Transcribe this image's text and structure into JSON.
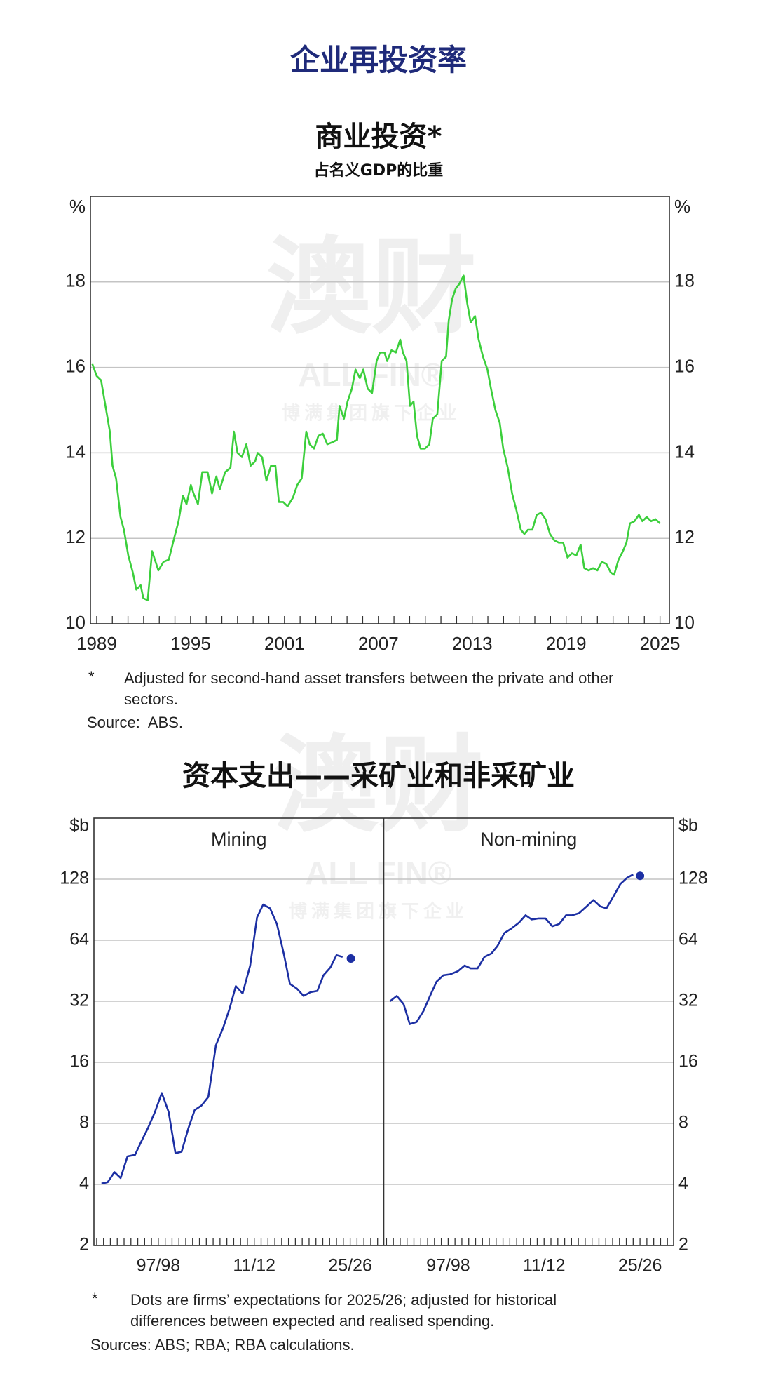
{
  "header": {
    "title": "企业再投资率"
  },
  "watermark": {
    "text": "澳财",
    "brand": "ALL FIN®",
    "tagline": "博满集团旗下企业"
  },
  "chart_data": [
    {
      "type": "line",
      "title": "商业投资*",
      "subtitle": "占名义GDP的比重",
      "y_unit": "%",
      "color": "#3ccf3c",
      "grid": true,
      "xlim": [
        1988.6,
        2025.6
      ],
      "xticks": [
        1989,
        1995,
        2001,
        2007,
        2013,
        2019,
        2025
      ],
      "xminorticks": [
        1989,
        1990,
        1991,
        1992,
        1993,
        1994,
        1995,
        1996,
        1997,
        1998,
        1999,
        2000,
        2001,
        2002,
        2003,
        2004,
        2005,
        2006,
        2007,
        2008,
        2009,
        2010,
        2011,
        2012,
        2013,
        2014,
        2015,
        2016,
        2017,
        2018,
        2019,
        2020,
        2021,
        2022,
        2023,
        2024,
        2025
      ],
      "ylim": [
        10,
        20
      ],
      "yticks": [
        10,
        12,
        14,
        16,
        18
      ],
      "x": [
        1988.72,
        1989.0,
        1989.28,
        1989.56,
        1989.84,
        1990.01,
        1990.24,
        1990.52,
        1990.74,
        1991.02,
        1991.31,
        1991.53,
        1991.81,
        1991.98,
        1992.26,
        1992.54,
        1992.94,
        1993.27,
        1993.61,
        1993.95,
        1994.23,
        1994.51,
        1994.74,
        1995.02,
        1995.19,
        1995.47,
        1995.75,
        1996.09,
        1996.37,
        1996.65,
        1996.87,
        1997.21,
        1997.55,
        1997.77,
        1998.0,
        1998.28,
        1998.56,
        1998.84,
        1999.12,
        1999.29,
        1999.57,
        1999.85,
        2000.14,
        2000.42,
        2000.64,
        2000.92,
        2001.2,
        2001.54,
        2001.82,
        2002.1,
        2002.39,
        2002.61,
        2002.89,
        2003.17,
        2003.45,
        2003.74,
        2004.07,
        2004.35,
        2004.52,
        2004.8,
        2005.03,
        2005.31,
        2005.54,
        2005.82,
        2006.04,
        2006.32,
        2006.6,
        2006.89,
        2007.11,
        2007.39,
        2007.56,
        2007.84,
        2008.12,
        2008.4,
        2008.57,
        2008.8,
        2009.02,
        2009.25,
        2009.47,
        2009.7,
        2009.98,
        2010.26,
        2010.48,
        2010.77,
        2011.05,
        2011.33,
        2011.5,
        2011.72,
        2011.95,
        2012.17,
        2012.45,
        2012.68,
        2012.9,
        2013.18,
        2013.41,
        2013.69,
        2013.97,
        2014.2,
        2014.48,
        2014.76,
        2014.98,
        2015.27,
        2015.55,
        2015.83,
        2016.11,
        2016.33,
        2016.56,
        2016.84,
        2017.12,
        2017.4,
        2017.68,
        2017.97,
        2018.25,
        2018.53,
        2018.81,
        2019.09,
        2019.37,
        2019.65,
        2019.93,
        2020.16,
        2020.44,
        2020.72,
        2021.0,
        2021.28,
        2021.57,
        2021.85,
        2022.07,
        2022.35,
        2022.63,
        2022.86,
        2023.08,
        2023.37,
        2023.65,
        2023.87,
        2024.15,
        2024.43,
        2024.71,
        2025.0
      ],
      "values": [
        16.08,
        15.8,
        15.7,
        15.1,
        14.5,
        13.7,
        13.4,
        12.5,
        12.2,
        11.6,
        11.2,
        10.8,
        10.9,
        10.6,
        10.55,
        11.7,
        11.25,
        11.45,
        11.5,
        12.0,
        12.4,
        13.0,
        12.8,
        13.25,
        13.05,
        12.8,
        13.55,
        13.55,
        13.05,
        13.45,
        13.15,
        13.55,
        13.65,
        14.5,
        14.0,
        13.9,
        14.2,
        13.7,
        13.8,
        14.0,
        13.9,
        13.35,
        13.7,
        13.7,
        12.85,
        12.85,
        12.75,
        12.95,
        13.25,
        13.4,
        14.5,
        14.2,
        14.1,
        14.4,
        14.45,
        14.2,
        14.25,
        14.3,
        15.1,
        14.8,
        15.2,
        15.5,
        15.95,
        15.75,
        15.95,
        15.5,
        15.4,
        16.15,
        16.35,
        16.35,
        16.15,
        16.4,
        16.35,
        16.65,
        16.35,
        16.15,
        15.1,
        15.2,
        14.4,
        14.1,
        14.1,
        14.2,
        14.8,
        14.9,
        16.15,
        16.25,
        17.1,
        17.6,
        17.85,
        17.95,
        18.15,
        17.5,
        17.05,
        17.2,
        16.65,
        16.25,
        15.95,
        15.5,
        15.0,
        14.7,
        14.1,
        13.65,
        13.05,
        12.65,
        12.2,
        12.1,
        12.2,
        12.2,
        12.55,
        12.6,
        12.45,
        12.1,
        11.95,
        11.9,
        11.9,
        11.55,
        11.65,
        11.6,
        11.85,
        11.3,
        11.25,
        11.3,
        11.25,
        11.45,
        11.4,
        11.2,
        11.15,
        11.5,
        11.7,
        11.9,
        12.35,
        12.4,
        12.55,
        12.4,
        12.5,
        12.4,
        12.45,
        12.35
      ],
      "footnote": {
        "mark": "*",
        "text": "Adjusted for second-hand asset transfers between the private and other sectors."
      },
      "source": "Source:  ABS."
    },
    {
      "type": "line",
      "title": "资本支出——采矿业和非采矿业",
      "y_unit": "$b",
      "yscale": "log",
      "color": "#1c2fa3",
      "grid": true,
      "xlim": [
        1988.6,
        2030.9
      ],
      "xticks": [
        {
          "value": 1998,
          "label": "97/98"
        },
        {
          "value": 2012,
          "label": "11/12"
        },
        {
          "value": 2026,
          "label": "25/26"
        }
      ],
      "xminorticks": [
        1989,
        1990,
        1991,
        1992,
        1993,
        1994,
        1995,
        1996,
        1997,
        1998,
        1999,
        2000,
        2001,
        2002,
        2003,
        2004,
        2005,
        2006,
        2007,
        2008,
        2009,
        2010,
        2011,
        2012,
        2013,
        2014,
        2015,
        2016,
        2017,
        2018,
        2019,
        2020,
        2021,
        2022,
        2023,
        2024,
        2025,
        2026,
        2027,
        2028,
        2029,
        2030
      ],
      "ylim": [
        2,
        256
      ],
      "yticks": [
        2,
        4,
        8,
        16,
        32,
        64,
        128
      ],
      "panels": [
        {
          "title": "Mining",
          "x": [
            1989.7,
            1990.6,
            1991.6,
            1992.5,
            1993.5,
            1994.6,
            1995.4,
            1996.5,
            1997.5,
            1998.5,
            1999.5,
            2000.5,
            2001.4,
            2002.4,
            2003.3,
            2004.3,
            2005.3,
            2006.4,
            2007.4,
            2008.4,
            2009.3,
            2010.3,
            2011.4,
            2012.4,
            2013.3,
            2014.3,
            2015.3,
            2016.3,
            2017.2,
            2018.2,
            2019.2,
            2020.2,
            2021.2,
            2022.1,
            2023.1,
            2024.0,
            2024.9
          ],
          "values": [
            4.04,
            4.1,
            4.6,
            4.3,
            5.5,
            5.6,
            6.4,
            7.6,
            9.1,
            11.3,
            9.1,
            5.7,
            5.8,
            7.6,
            9.3,
            9.8,
            10.8,
            19.4,
            23.4,
            29.5,
            38,
            35,
            48,
            83,
            96,
            92,
            77,
            55,
            39,
            37,
            34,
            35.5,
            36,
            43,
            47,
            54,
            53
          ],
          "expectation": {
            "x": 2026.1,
            "value": 52
          }
        },
        {
          "title": "Non-mining",
          "x": [
            1989.5,
            1990.5,
            1991.5,
            1992.4,
            1993.4,
            1994.4,
            1995.4,
            1996.3,
            1997.3,
            1998.3,
            1999.4,
            2000.4,
            2001.3,
            2002.3,
            2003.3,
            2004.3,
            2005.2,
            2006.2,
            2007.2,
            2008.3,
            2009.3,
            2010.2,
            2011.2,
            2012.2,
            2013.2,
            2014.2,
            2015.2,
            2016.1,
            2017.1,
            2018.2,
            2019.2,
            2020.2,
            2021.1,
            2022.1,
            2023.1,
            2024.1,
            2025.0
          ],
          "values": [
            32,
            34,
            31,
            24.7,
            25.3,
            28.7,
            34.3,
            40,
            43,
            43.5,
            45,
            48,
            46.5,
            46.5,
            53,
            55,
            60,
            69.5,
            73,
            78,
            85,
            81,
            82,
            82,
            75,
            77,
            85,
            85,
            87,
            94,
            101,
            94,
            92,
            105,
            121,
            130,
            135
          ],
          "expectation": {
            "x": 2026.0,
            "value": 133
          }
        }
      ],
      "footnote": {
        "mark": "*",
        "text": "Dots are firms’ expectations for 2025/26; adjusted for historical differences between expected and realised spending."
      },
      "source": "Sources: ABS; RBA; RBA calculations."
    }
  ]
}
